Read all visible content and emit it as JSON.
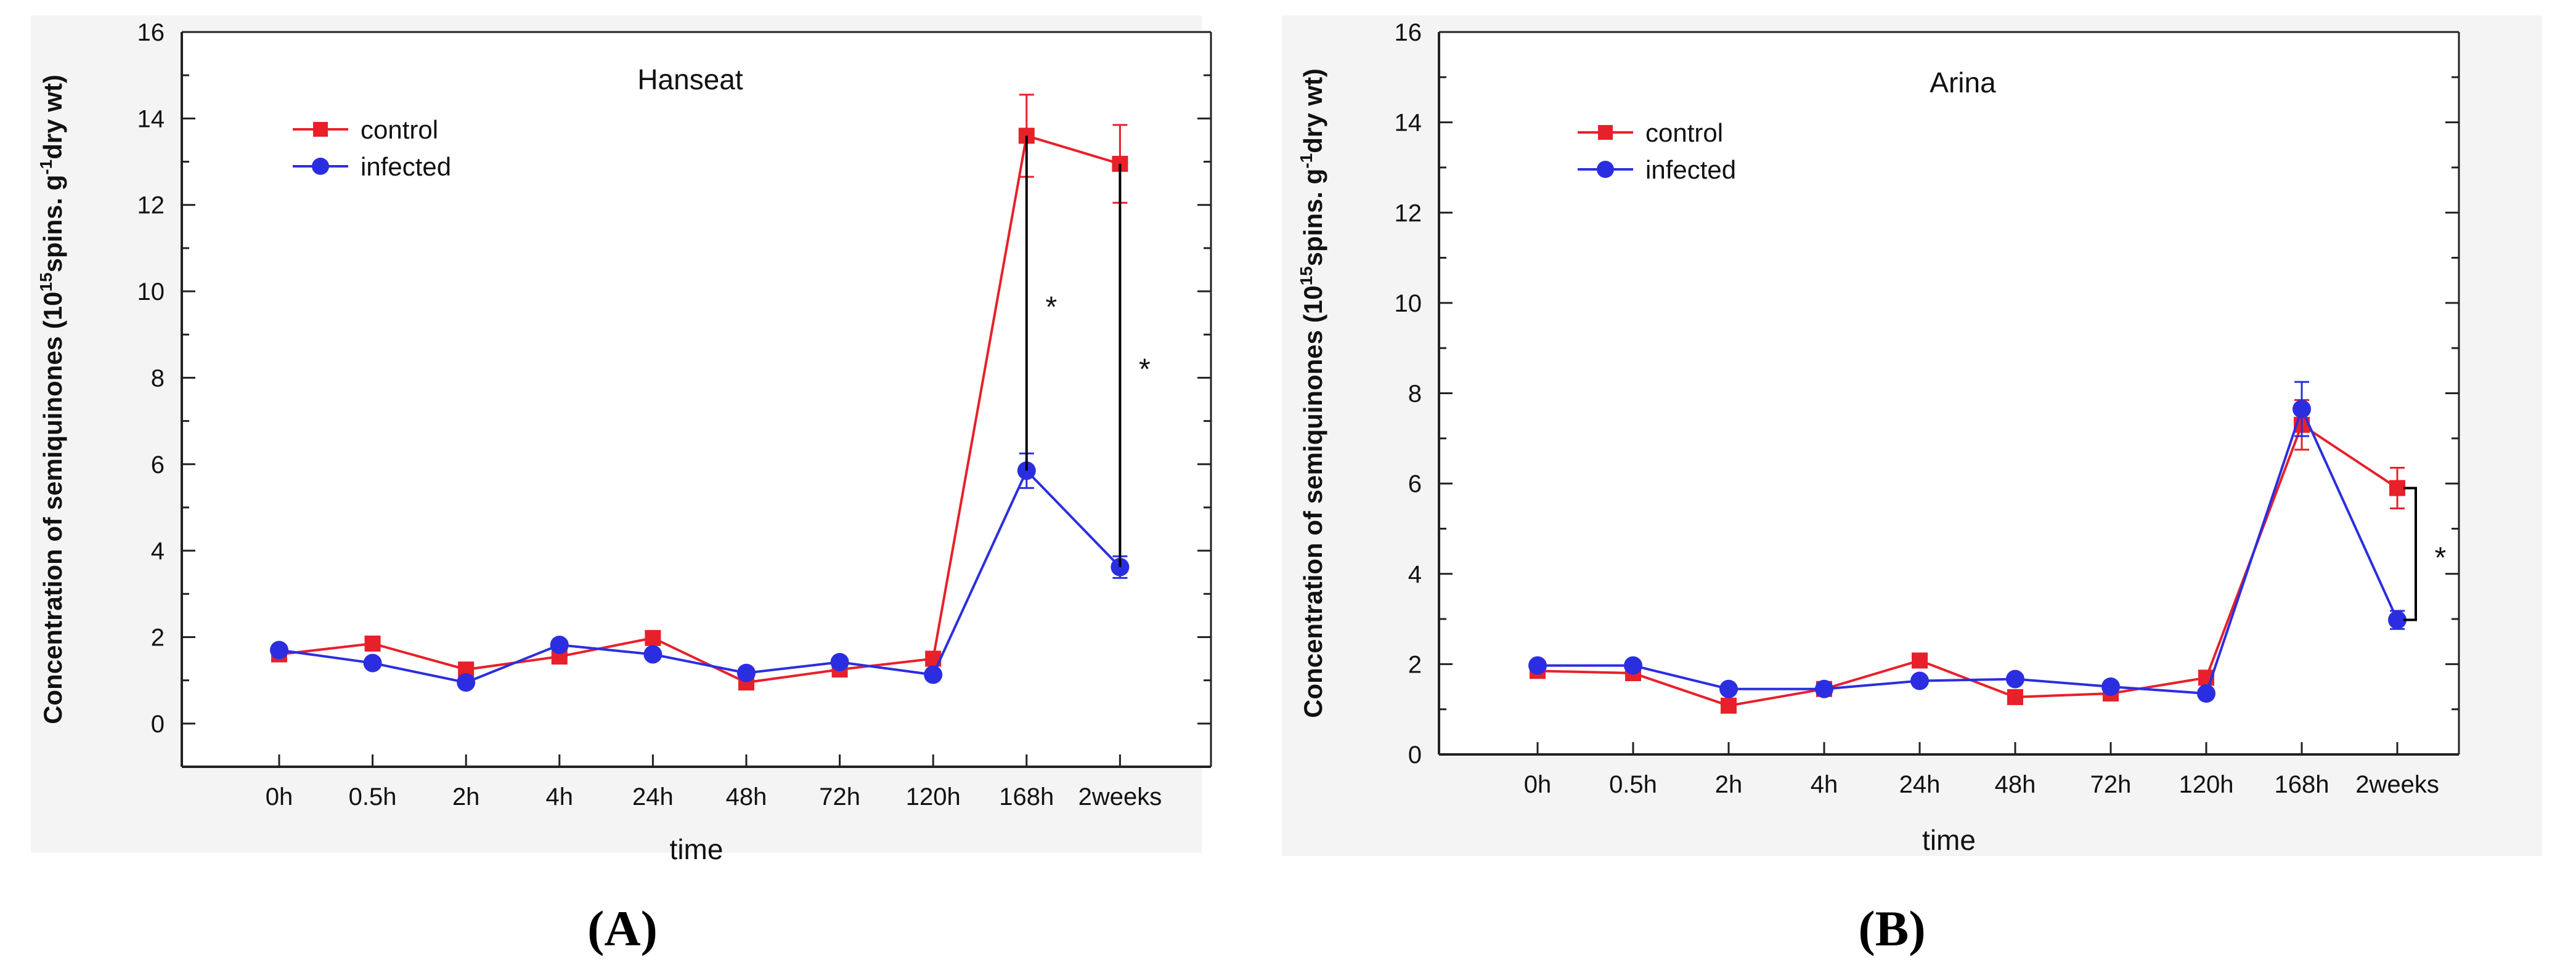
{
  "figure": {
    "panel_labels": [
      "(A)",
      "(B)"
    ]
  },
  "chart_data": [
    {
      "type": "line",
      "title": "Hanseat",
      "xlabel": "time",
      "ylabel_main": "Concentration of semiquinones (10",
      "ylabel_exp1": "15",
      "ylabel_mid": "spins. g",
      "ylabel_exp2": "-1",
      "ylabel_end": "dry wt)",
      "ylim": [
        -1,
        16
      ],
      "yticks": [
        0,
        2,
        4,
        6,
        8,
        10,
        12,
        14,
        16
      ],
      "categories": [
        "0h",
        "0.5h",
        "2h",
        "4h",
        "24h",
        "48h",
        "72h",
        "120h",
        "168h",
        "2weeks"
      ],
      "legend_position": "top-left",
      "series": [
        {
          "name": "control",
          "color": "#e8202a",
          "marker": "square",
          "values": [
            1.6,
            1.85,
            1.25,
            1.55,
            1.98,
            0.95,
            1.25,
            1.5,
            13.6,
            12.95
          ],
          "errors": [
            0.1,
            0.1,
            0.1,
            0.1,
            0.1,
            0.1,
            0.1,
            0.1,
            0.95,
            0.9
          ]
        },
        {
          "name": "infected",
          "color": "#2b2ee0",
          "marker": "circle",
          "values": [
            1.7,
            1.4,
            0.95,
            1.82,
            1.6,
            1.17,
            1.42,
            1.13,
            5.85,
            3.62
          ],
          "errors": [
            0.1,
            0.1,
            0.1,
            0.1,
            0.1,
            0.1,
            0.1,
            0.1,
            0.4,
            0.25
          ]
        }
      ],
      "significance": [
        {
          "category": "168h",
          "label": "*"
        },
        {
          "category": "2weeks",
          "label": "*"
        }
      ]
    },
    {
      "type": "line",
      "title": "Arina",
      "xlabel": "time",
      "ylabel_main": "Concentration of semiquinones (10",
      "ylabel_exp1": "15",
      "ylabel_mid": "spins. g",
      "ylabel_exp2": "-1",
      "ylabel_end": "dry wt)",
      "ylim": [
        0,
        16
      ],
      "yticks": [
        0,
        2,
        4,
        6,
        8,
        10,
        12,
        14,
        16
      ],
      "categories": [
        "0h",
        "0.5h",
        "2h",
        "4h",
        "24h",
        "48h",
        "72h",
        "120h",
        "168h",
        "2weeks"
      ],
      "legend_position": "top-left",
      "series": [
        {
          "name": "control",
          "color": "#e8202a",
          "marker": "square",
          "values": [
            1.85,
            1.8,
            1.08,
            1.45,
            2.08,
            1.27,
            1.35,
            1.7,
            7.3,
            5.9
          ],
          "errors": [
            0.1,
            0.1,
            0.1,
            0.1,
            0.1,
            0.1,
            0.1,
            0.1,
            0.55,
            0.45
          ]
        },
        {
          "name": "infected",
          "color": "#2b2ee0",
          "marker": "circle",
          "values": [
            1.97,
            1.97,
            1.45,
            1.45,
            1.63,
            1.67,
            1.5,
            1.35,
            7.65,
            2.98
          ],
          "errors": [
            0.1,
            0.1,
            0.1,
            0.1,
            0.1,
            0.1,
            0.1,
            0.1,
            0.6,
            0.2
          ]
        }
      ],
      "significance": [
        {
          "category": "2weeks",
          "label": "*"
        }
      ]
    }
  ]
}
